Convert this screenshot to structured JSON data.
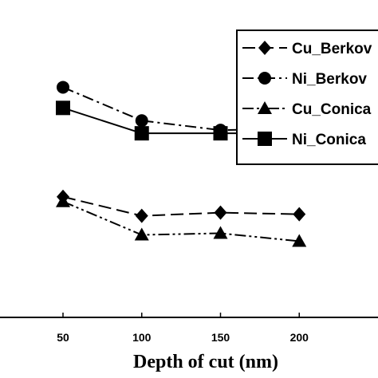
{
  "chart_data": {
    "type": "line",
    "title": "",
    "xlabel": "Depth of cut (nm)",
    "ylabel": "",
    "x": [
      50,
      100,
      150,
      200
    ],
    "xticks": [
      "50",
      "100",
      "150",
      "200"
    ],
    "xlim": [
      10,
      250
    ],
    "ylim": [
      0,
      10
    ],
    "grid": false,
    "legend_position": "top-right",
    "series": [
      {
        "name": "Cu_Berkov",
        "values": [
          3.8,
          3.2,
          3.3,
          3.25
        ],
        "marker": "diamond",
        "dash": "long-dash",
        "color": "#000000"
      },
      {
        "name": "Ni_Berkov",
        "values": [
          7.25,
          6.2,
          5.9,
          5.95
        ],
        "marker": "circle",
        "dash": "dash-dot",
        "color": "#000000"
      },
      {
        "name": "Cu_Conica",
        "values": [
          3.65,
          2.6,
          2.65,
          2.4
        ],
        "marker": "triangle",
        "dash": "dash-dot-dot",
        "color": "#000000"
      },
      {
        "name": "Ni_Conica",
        "values": [
          6.6,
          5.8,
          5.8,
          5.8
        ],
        "marker": "square",
        "dash": "solid",
        "color": "#000000"
      }
    ]
  }
}
